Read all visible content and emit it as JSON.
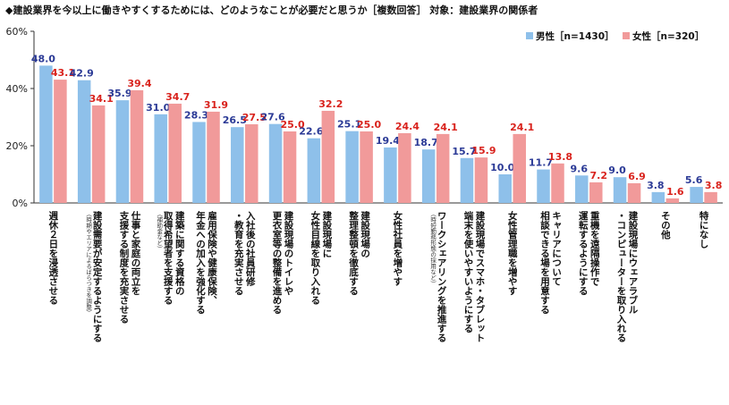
{
  "chart_data": {
    "type": "bar",
    "title": "◆建設業界を今以上に働きやすくするためには、どのようなことが必要だと思うか［複数回答］ 対象：建設業界の関係者",
    "xlabel": "",
    "ylabel": "",
    "ylim": [
      0,
      60
    ],
    "yticks": [
      "0%",
      "20%",
      "40%",
      "60%"
    ],
    "grid": false,
    "legend_position": "top-right",
    "colors": {
      "male": "#8ec0ea",
      "female": "#f19a9a",
      "male_label": "#2b3a96",
      "female_label": "#d9231d"
    },
    "categories": [
      {
        "lines": [
          "週休２日を浸透させる"
        ],
        "note": ""
      },
      {
        "lines": [
          "建設需要が安定するようにする"
        ],
        "note": "（時期やエリアによるばらつきを調整）"
      },
      {
        "lines": [
          "仕事と家庭の両立を",
          "支援する制度を充実させる"
        ],
        "note": ""
      },
      {
        "lines": [
          "建築に関する資格の",
          "取得希望者を支援する"
        ],
        "note": "（補助金など）"
      },
      {
        "lines": [
          "雇用保険や健康保険、",
          "年金への加入を強化する"
        ],
        "note": ""
      },
      {
        "lines": [
          "入社後の社員研修",
          "・教育を充実させる"
        ],
        "note": ""
      },
      {
        "lines": [
          "建設現場のトイレや",
          "更衣室等の整備を進める"
        ],
        "note": ""
      },
      {
        "lines": [
          "建設現場に",
          "女性目線を取り入れる"
        ],
        "note": ""
      },
      {
        "lines": [
          "建設現場の",
          "整理整頓を徹底する"
        ],
        "note": ""
      },
      {
        "lines": [
          "女性社員を増やす"
        ],
        "note": ""
      },
      {
        "lines": [
          "ワークシェアリングを推進する"
        ],
        "note": "（時短勤務形態の採用など）"
      },
      {
        "lines": [
          "建設現場でスマホ・タブレット",
          "端末を使いやすいようにする"
        ],
        "note": ""
      },
      {
        "lines": [
          "女性管理職を増やす"
        ],
        "note": ""
      },
      {
        "lines": [
          "キャリアについて",
          "相談できる場を用意する"
        ],
        "note": ""
      },
      {
        "lines": [
          "重機を遠隔操作で",
          "運転するようにする"
        ],
        "note": ""
      },
      {
        "lines": [
          "建設現場にウェアラブル",
          "・コンピューターを取り入れる"
        ],
        "note": ""
      },
      {
        "lines": [
          "その他"
        ],
        "note": ""
      },
      {
        "lines": [
          "特になし"
        ],
        "note": ""
      }
    ],
    "series": [
      {
        "name": "男性［n=1430］",
        "values": [
          48.0,
          42.9,
          35.9,
          31.0,
          28.3,
          26.5,
          27.6,
          22.6,
          25.1,
          19.4,
          18.7,
          15.7,
          10.0,
          11.7,
          9.6,
          9.0,
          3.8,
          5.6
        ]
      },
      {
        "name": "女性［n=320］",
        "values": [
          43.1,
          34.1,
          39.4,
          34.7,
          31.9,
          27.5,
          25.0,
          32.2,
          25.0,
          24.4,
          24.1,
          15.9,
          24.1,
          13.8,
          7.2,
          6.9,
          1.6,
          3.8
        ]
      }
    ]
  }
}
